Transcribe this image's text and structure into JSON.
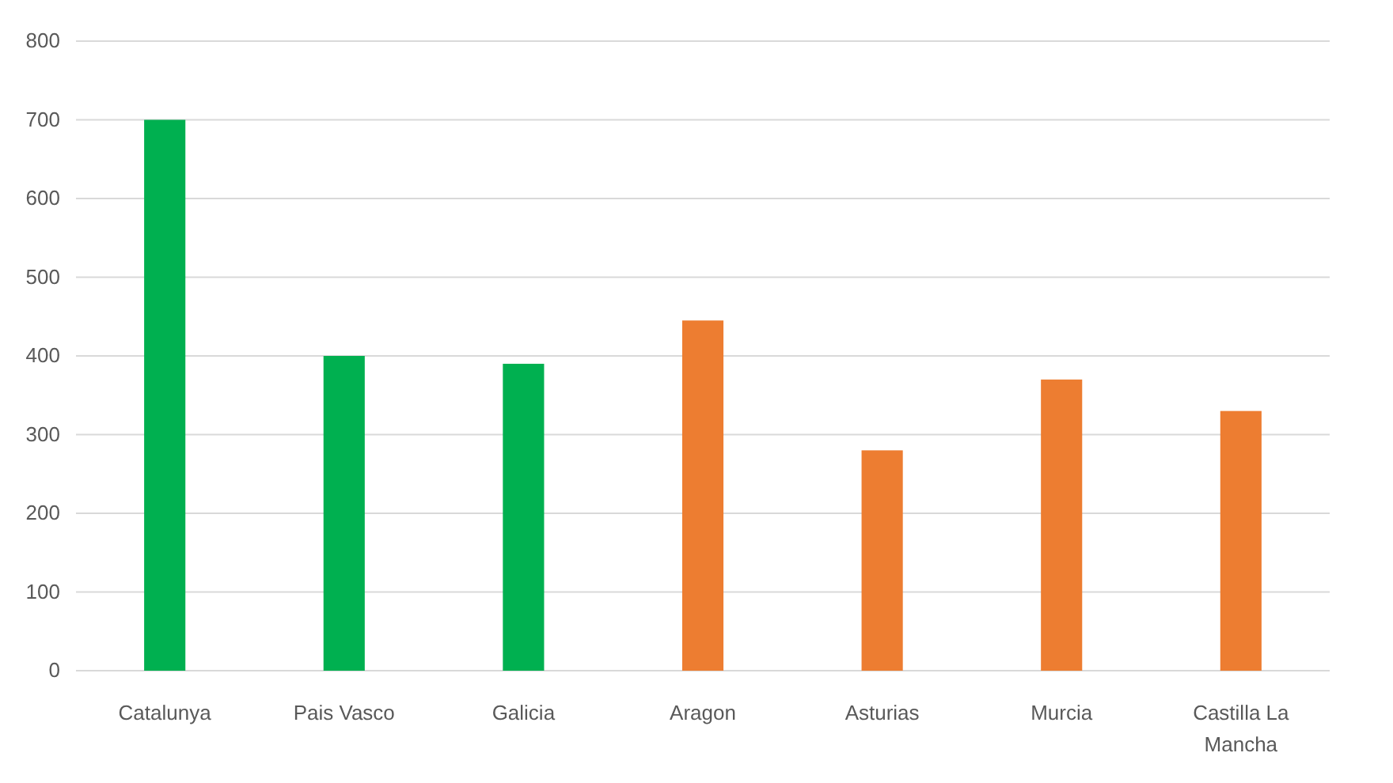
{
  "chart_data": {
    "type": "bar",
    "categories": [
      "Catalunya",
      "Pais Vasco",
      "Galicia",
      "Aragon",
      "Asturias",
      "Murcia",
      "Castilla La Mancha"
    ],
    "values": [
      700,
      400,
      390,
      445,
      280,
      370,
      330
    ],
    "colors": [
      "#00b050",
      "#00b050",
      "#00b050",
      "#ed7d31",
      "#ed7d31",
      "#ed7d31",
      "#ed7d31"
    ],
    "ylim": [
      0,
      800
    ],
    "yticks": [
      0,
      100,
      200,
      300,
      400,
      500,
      600,
      700,
      800
    ],
    "grid": "y"
  }
}
